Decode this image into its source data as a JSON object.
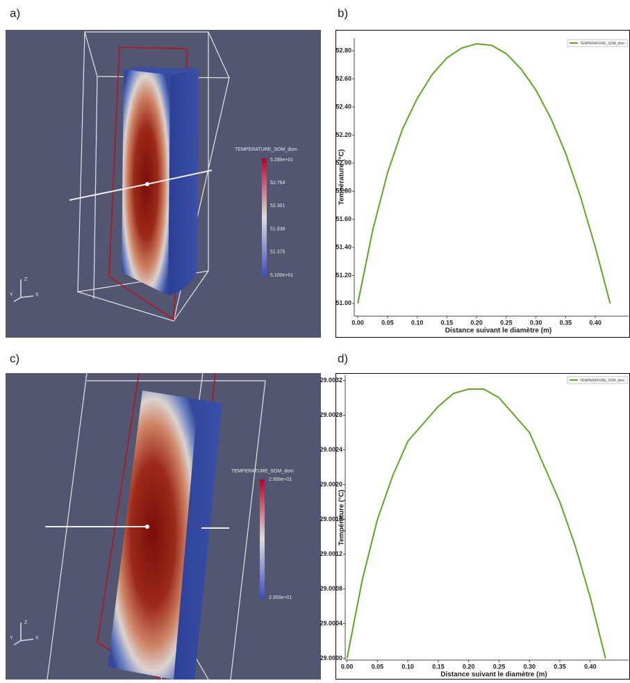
{
  "panel_labels": [
    "a)",
    "b)",
    "c)",
    "d)"
  ],
  "renders": [
    {
      "colorbar_title": "TEMPERATURE_SOM_dom",
      "colorbar_labels": [
        "5.285e+01",
        "52.764",
        "52.301",
        "51.838",
        "51.375",
        "5.100e+01"
      ],
      "axes": [
        "Z",
        "Y",
        "X"
      ]
    },
    {
      "colorbar_title": "TEMPERATURE_SOM_dom",
      "colorbar_labels": [
        "2.900e+01",
        "2.900e+01"
      ],
      "axes": [
        "Z",
        "Y",
        "X"
      ]
    }
  ],
  "chart_data": [
    {
      "type": "line",
      "xlabel": "Distance suivant le diamètre (m)",
      "ylabel": "Température (°C)",
      "x": [
        0,
        0.025,
        0.05,
        0.075,
        0.1,
        0.125,
        0.15,
        0.175,
        0.2,
        0.225,
        0.25,
        0.275,
        0.3,
        0.325,
        0.35,
        0.375,
        0.4,
        0.425
      ],
      "series": [
        {
          "name": "TEMPERATURE_SOM_dom",
          "color": "#5aa81e",
          "values": [
            51.0,
            51.52,
            51.93,
            52.24,
            52.46,
            52.63,
            52.75,
            52.82,
            52.85,
            52.84,
            52.78,
            52.67,
            52.52,
            52.32,
            52.07,
            51.76,
            51.4,
            51.0
          ]
        }
      ],
      "xlim": [
        -0.006,
        0.456
      ],
      "ylim": [
        50.91,
        52.89
      ],
      "xticks": [
        {
          "value": 0,
          "label": "0.00"
        },
        {
          "value": 0.05,
          "label": "0.05"
        },
        {
          "value": 0.1,
          "label": "0.10"
        },
        {
          "value": 0.15,
          "label": "0.15"
        },
        {
          "value": 0.2,
          "label": "0.20"
        },
        {
          "value": 0.25,
          "label": "0.25"
        },
        {
          "value": 0.3,
          "label": "0.30"
        },
        {
          "value": 0.35,
          "label": "0.35"
        },
        {
          "value": 0.4,
          "label": "0.40"
        }
      ],
      "yticks": [
        {
          "value": 51,
          "label": "51.00"
        },
        {
          "value": 51.2,
          "label": "51.20"
        },
        {
          "value": 51.4,
          "label": "51.40"
        },
        {
          "value": 51.6,
          "label": "51.60"
        },
        {
          "value": 51.8,
          "label": "51.80"
        },
        {
          "value": 52,
          "label": "52.00"
        },
        {
          "value": 52.2,
          "label": "52.20"
        },
        {
          "value": 52.4,
          "label": "52.40"
        },
        {
          "value": 52.6,
          "label": "52.60"
        },
        {
          "value": 52.8,
          "label": "52.80"
        }
      ],
      "grid": false,
      "legend": "upper right"
    },
    {
      "type": "line",
      "xlabel": "Distance suivant le diamètre (m)",
      "ylabel": "Température (°C)",
      "x": [
        0,
        0.025,
        0.05,
        0.075,
        0.1,
        0.125,
        0.15,
        0.175,
        0.2,
        0.225,
        0.25,
        0.275,
        0.3,
        0.325,
        0.35,
        0.375,
        0.4,
        0.425
      ],
      "series": [
        {
          "name": "TEMPERATURE_SOM_dom",
          "color": "#5aa81e",
          "values": [
            29.0,
            29.0009,
            29.0016,
            29.0021,
            29.0025,
            29.0027,
            29.0029,
            29.00305,
            29.0031,
            29.0031,
            29.003,
            29.0028,
            29.0026,
            29.0022,
            29.0018,
            29.0013,
            29.0007,
            29.0
          ]
        }
      ],
      "xlim": [
        -0.003,
        0.463
      ],
      "ylim": [
        28.99998,
        29.00326
      ],
      "xticks": [
        {
          "value": 0,
          "label": "0.00"
        },
        {
          "value": 0.05,
          "label": "0.05"
        },
        {
          "value": 0.1,
          "label": "0.10"
        },
        {
          "value": 0.15,
          "label": "0.15"
        },
        {
          "value": 0.2,
          "label": "0.20"
        },
        {
          "value": 0.25,
          "label": "0.25"
        },
        {
          "value": 0.3,
          "label": "0.30"
        },
        {
          "value": 0.35,
          "label": "0.35"
        },
        {
          "value": 0.4,
          "label": "0.40"
        }
      ],
      "yticks": [
        {
          "value": 29,
          "label": "29.0000"
        },
        {
          "value": 29.0004,
          "label": "29.0004"
        },
        {
          "value": 29.0008,
          "label": "29.0008"
        },
        {
          "value": 29.0012,
          "label": "29.0012"
        },
        {
          "value": 29.0016,
          "label": "29.0016"
        },
        {
          "value": 29.002,
          "label": "29.0020"
        },
        {
          "value": 29.0024,
          "label": "29.0024"
        },
        {
          "value": 29.0028,
          "label": "29.0028"
        },
        {
          "value": 29.0032,
          "label": "29.0032"
        }
      ],
      "grid": false,
      "legend": "upper right"
    }
  ]
}
